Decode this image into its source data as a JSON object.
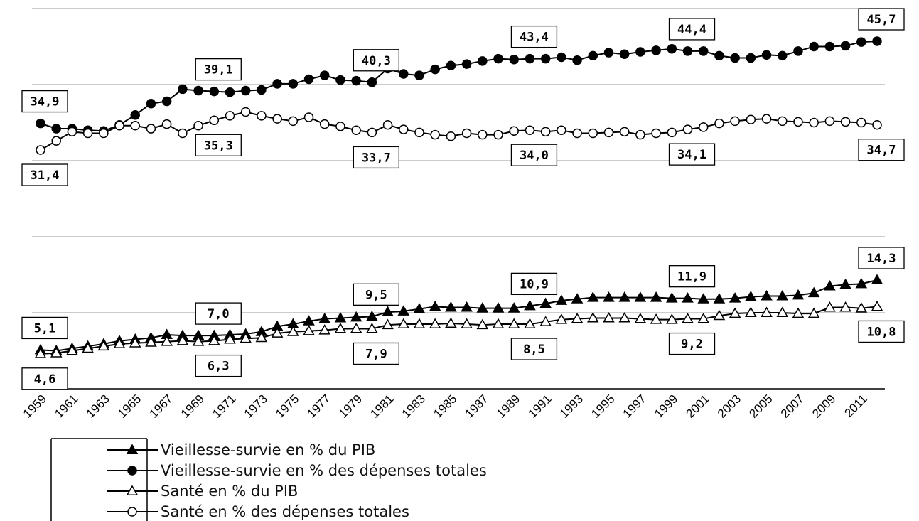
{
  "chart_data": {
    "type": "line",
    "categories": [
      "1959",
      null,
      "1961",
      null,
      "1963",
      null,
      "1965",
      null,
      "1967",
      null,
      "1969",
      null,
      "1971",
      null,
      "1973",
      null,
      "1975",
      null,
      "1977",
      null,
      "1979",
      null,
      "1981",
      null,
      "1983",
      null,
      "1985",
      null,
      "1987",
      null,
      "1989",
      null,
      "1991",
      null,
      "1993",
      null,
      "1995",
      null,
      "1997",
      null,
      "1999",
      null,
      "2001",
      null,
      "2003",
      null,
      "2005",
      null,
      "2007",
      null,
      "2009",
      null,
      "2011",
      null
    ],
    "ylim": [
      0,
      50
    ],
    "yticks": [
      0,
      10,
      20,
      30,
      40,
      50
    ],
    "grid": true,
    "series": [
      {
        "name": "Vieillesse-survie en % du PIB",
        "color": "#000000",
        "marker": "filled-triangle",
        "values": [
          5.1,
          5.0,
          5.3,
          5.6,
          5.9,
          6.3,
          6.5,
          6.7,
          7.1,
          7.0,
          7.0,
          7.0,
          7.1,
          7.2,
          7.5,
          8.2,
          8.5,
          8.9,
          9.2,
          9.3,
          9.4,
          9.5,
          10.1,
          10.2,
          10.5,
          10.8,
          10.7,
          10.7,
          10.6,
          10.6,
          10.6,
          10.9,
          11.2,
          11.6,
          11.8,
          12.0,
          12.0,
          12.0,
          12.0,
          12.0,
          11.9,
          11.9,
          11.8,
          11.8,
          11.9,
          12.1,
          12.2,
          12.2,
          12.3,
          12.6,
          13.5,
          13.7,
          13.8,
          14.3
        ],
        "value_labels": [
          "5,1",
          null,
          null,
          null,
          null,
          null,
          null,
          null,
          null,
          null,
          null,
          "7,0",
          null,
          null,
          null,
          null,
          null,
          null,
          null,
          null,
          null,
          "9,5",
          null,
          null,
          null,
          null,
          null,
          null,
          null,
          null,
          null,
          "10,9",
          null,
          null,
          null,
          null,
          null,
          null,
          null,
          null,
          null,
          "11,9",
          null,
          null,
          null,
          null,
          null,
          null,
          null,
          null,
          null,
          null,
          null,
          "14,3"
        ]
      },
      {
        "name": "Vieillesse-survie en % des dépenses totales",
        "color": "#000000",
        "marker": "filled-circle",
        "values": [
          34.9,
          34.2,
          34.2,
          34.0,
          33.9,
          34.7,
          36.0,
          37.5,
          37.8,
          39.4,
          39.2,
          39.1,
          39.0,
          39.2,
          39.3,
          40.1,
          40.1,
          40.7,
          41.2,
          40.6,
          40.5,
          40.3,
          42.1,
          41.4,
          41.2,
          42.0,
          42.5,
          42.7,
          43.1,
          43.4,
          43.3,
          43.4,
          43.4,
          43.6,
          43.2,
          43.8,
          44.2,
          44.0,
          44.3,
          44.5,
          44.7,
          44.4,
          44.4,
          43.8,
          43.5,
          43.5,
          43.9,
          43.8,
          44.4,
          45.0,
          45.0,
          45.1,
          45.6,
          45.7
        ],
        "value_labels": [
          "34,9",
          null,
          null,
          null,
          null,
          null,
          null,
          null,
          null,
          null,
          null,
          "39,1",
          null,
          null,
          null,
          null,
          null,
          null,
          null,
          null,
          null,
          "40,3",
          null,
          null,
          null,
          null,
          null,
          null,
          null,
          null,
          null,
          "43,4",
          null,
          null,
          null,
          null,
          null,
          null,
          null,
          null,
          null,
          "44,4",
          null,
          null,
          null,
          null,
          null,
          null,
          null,
          null,
          null,
          null,
          null,
          "45,7"
        ]
      },
      {
        "name": "Santé en % du PIB",
        "color": "#000000",
        "marker": "open-triangle",
        "values": [
          4.6,
          4.7,
          5.0,
          5.3,
          5.6,
          5.9,
          6.0,
          6.1,
          6.2,
          6.3,
          6.2,
          6.3,
          6.5,
          6.6,
          6.7,
          7.3,
          7.5,
          7.6,
          7.7,
          7.9,
          7.9,
          7.9,
          8.4,
          8.5,
          8.5,
          8.5,
          8.6,
          8.5,
          8.4,
          8.5,
          8.5,
          8.5,
          8.8,
          9.1,
          9.2,
          9.3,
          9.3,
          9.3,
          9.2,
          9.1,
          9.1,
          9.2,
          9.2,
          9.6,
          9.9,
          10.0,
          10.0,
          10.0,
          9.9,
          9.9,
          10.7,
          10.7,
          10.6,
          10.8
        ],
        "value_labels": [
          "4,6",
          null,
          null,
          null,
          null,
          null,
          null,
          null,
          null,
          null,
          null,
          "6,3",
          null,
          null,
          null,
          null,
          null,
          null,
          null,
          null,
          null,
          "7,9",
          null,
          null,
          null,
          null,
          null,
          null,
          null,
          null,
          null,
          "8,5",
          null,
          null,
          null,
          null,
          null,
          null,
          null,
          null,
          null,
          "9,2",
          null,
          null,
          null,
          null,
          null,
          null,
          null,
          null,
          null,
          null,
          null,
          "10,8"
        ]
      },
      {
        "name": "Santé en % des dépenses totales",
        "color": "#000000",
        "marker": "open-circle",
        "values": [
          31.4,
          32.6,
          33.8,
          33.6,
          33.6,
          34.6,
          34.6,
          34.2,
          34.8,
          33.6,
          34.6,
          35.3,
          35.9,
          36.4,
          35.9,
          35.5,
          35.2,
          35.7,
          34.8,
          34.5,
          34.0,
          33.7,
          34.7,
          34.1,
          33.7,
          33.4,
          33.2,
          33.6,
          33.4,
          33.4,
          33.9,
          34.0,
          33.8,
          34.0,
          33.6,
          33.6,
          33.7,
          33.8,
          33.4,
          33.6,
          33.7,
          34.1,
          34.4,
          34.9,
          35.2,
          35.4,
          35.5,
          35.2,
          35.1,
          35.0,
          35.2,
          35.1,
          35.0,
          34.7
        ],
        "value_labels": [
          "31,4",
          null,
          null,
          null,
          null,
          null,
          null,
          null,
          null,
          null,
          null,
          "35,3",
          null,
          null,
          null,
          null,
          null,
          null,
          null,
          null,
          null,
          "33,7",
          null,
          null,
          null,
          null,
          null,
          null,
          null,
          null,
          null,
          "34,0",
          null,
          null,
          null,
          null,
          null,
          null,
          null,
          null,
          null,
          "34,1",
          null,
          null,
          null,
          null,
          null,
          null,
          null,
          null,
          null,
          null,
          null,
          "34,7"
        ]
      }
    ]
  }
}
